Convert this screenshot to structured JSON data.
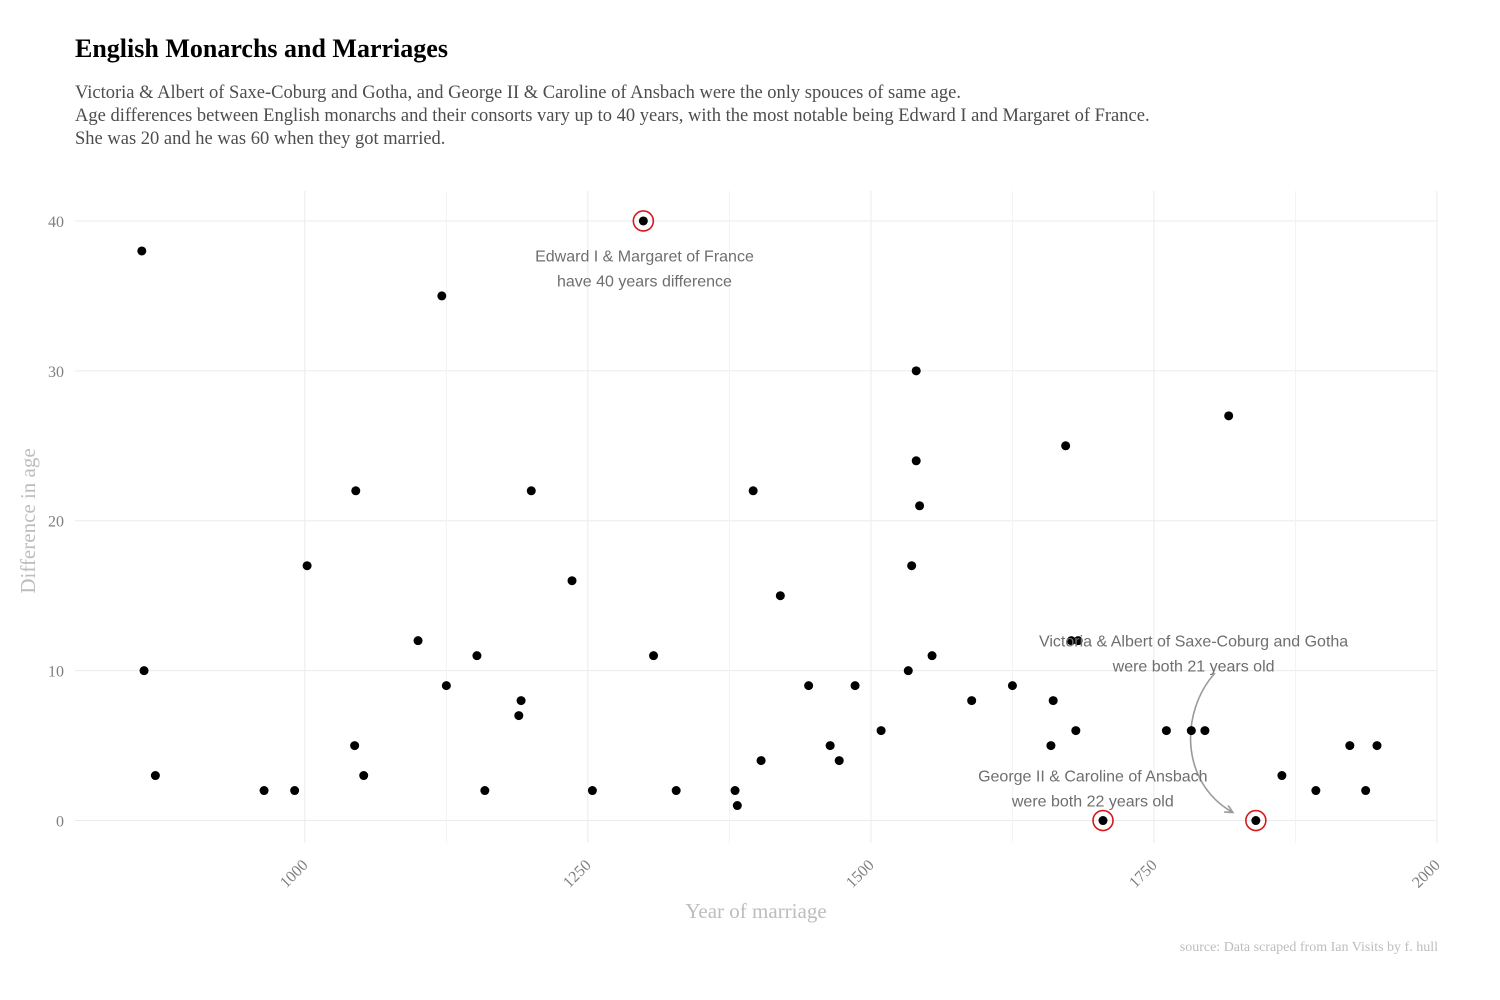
{
  "title": "English Monarchs and Marriages",
  "subtitle": [
    "Victoria & Albert of Saxe-Coburg and Gotha, and George II & Caroline of Ansbach were the only spouces of same age.",
    "Age differences between English monarchs and their consorts vary up to 40 years, with the most notable being Edward I and Margaret of France.",
    "She was 20 and he was 60 when they got married."
  ],
  "caption": "source: Data scraped from Ian Visits by f. hull",
  "colors": {
    "point": "#000000",
    "highlight_ring": "#d7191c",
    "grid": "#ebebeb",
    "annotation_text": "#6e6e6e",
    "axis_title": "#bdbdbd",
    "tick_label": "#7f7f7f",
    "arrow": "#9a9a9a"
  },
  "chart_data": {
    "type": "scatter",
    "xlabel": "Year of marriage",
    "ylabel": "Difference in age",
    "xlim": [
      797,
      2000
    ],
    "ylim": [
      -1.5,
      42
    ],
    "x_ticks": [
      1000,
      1250,
      1500,
      1750,
      2000
    ],
    "y_ticks": [
      0,
      10,
      20,
      30,
      40
    ],
    "grid": true,
    "points": [
      {
        "x": 856,
        "y": 38
      },
      {
        "x": 858,
        "y": 10
      },
      {
        "x": 868,
        "y": 3
      },
      {
        "x": 964,
        "y": 2
      },
      {
        "x": 991,
        "y": 2
      },
      {
        "x": 1002,
        "y": 17
      },
      {
        "x": 1045,
        "y": 22
      },
      {
        "x": 1044,
        "y": 5
      },
      {
        "x": 1052,
        "y": 3
      },
      {
        "x": 1100,
        "y": 12
      },
      {
        "x": 1121,
        "y": 35
      },
      {
        "x": 1125,
        "y": 9
      },
      {
        "x": 1152,
        "y": 11
      },
      {
        "x": 1159,
        "y": 2
      },
      {
        "x": 1189,
        "y": 7
      },
      {
        "x": 1191,
        "y": 8
      },
      {
        "x": 1200,
        "y": 22
      },
      {
        "x": 1236,
        "y": 16
      },
      {
        "x": 1254,
        "y": 2
      },
      {
        "x": 1299,
        "y": 40,
        "highlight": true
      },
      {
        "x": 1308,
        "y": 11
      },
      {
        "x": 1328,
        "y": 2
      },
      {
        "x": 1380,
        "y": 2
      },
      {
        "x": 1382,
        "y": 1
      },
      {
        "x": 1396,
        "y": 22
      },
      {
        "x": 1403,
        "y": 4
      },
      {
        "x": 1420,
        "y": 15
      },
      {
        "x": 1445,
        "y": 9
      },
      {
        "x": 1464,
        "y": 5
      },
      {
        "x": 1472,
        "y": 4
      },
      {
        "x": 1486,
        "y": 9
      },
      {
        "x": 1509,
        "y": 6
      },
      {
        "x": 1533,
        "y": 10
      },
      {
        "x": 1536,
        "y": 17
      },
      {
        "x": 1540,
        "y": 30
      },
      {
        "x": 1540,
        "y": 24
      },
      {
        "x": 1543,
        "y": 21
      },
      {
        "x": 1554,
        "y": 11
      },
      {
        "x": 1589,
        "y": 8
      },
      {
        "x": 1625,
        "y": 9
      },
      {
        "x": 1659,
        "y": 5
      },
      {
        "x": 1661,
        "y": 8
      },
      {
        "x": 1672,
        "y": 25
      },
      {
        "x": 1677,
        "y": 12
      },
      {
        "x": 1683,
        "y": 12
      },
      {
        "x": 1681,
        "y": 6
      },
      {
        "x": 1705,
        "y": 0,
        "highlight": true
      },
      {
        "x": 1761,
        "y": 6
      },
      {
        "x": 1795,
        "y": 6
      },
      {
        "x": 1783,
        "y": 6
      },
      {
        "x": 1816,
        "y": 27
      },
      {
        "x": 1840,
        "y": 0,
        "highlight": true
      },
      {
        "x": 1863,
        "y": 3
      },
      {
        "x": 1893,
        "y": 2
      },
      {
        "x": 1923,
        "y": 5
      },
      {
        "x": 1937,
        "y": 2
      },
      {
        "x": 1947,
        "y": 5
      }
    ],
    "annotations": [
      {
        "lines": [
          "Edward I & Margaret of France",
          "have 40 years difference"
        ],
        "x": 1300,
        "y": 37.3
      },
      {
        "lines": [
          "Victoria & Albert of Saxe-Coburg and Gotha",
          "were both 21 years old"
        ],
        "x": 1785,
        "y": 11.6
      },
      {
        "lines": [
          "George II & Caroline of Ansbach",
          "were both 22 years old"
        ],
        "x": 1696,
        "y": 2.6
      }
    ]
  }
}
